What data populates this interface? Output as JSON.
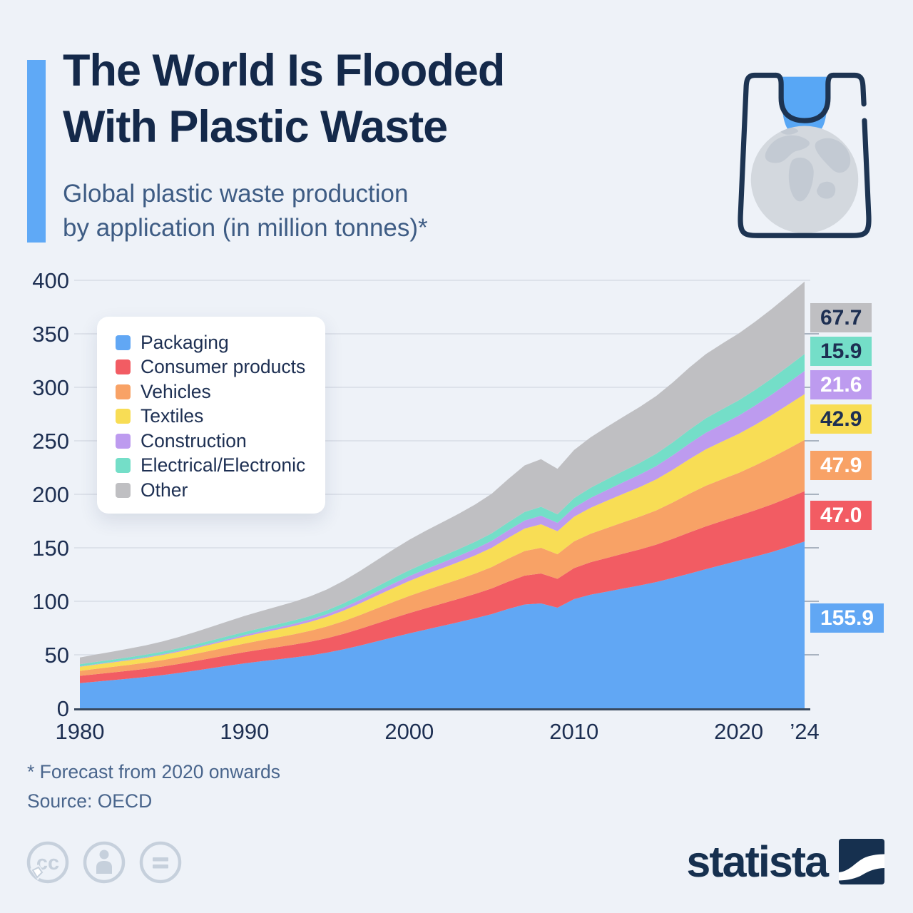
{
  "header": {
    "title_line1": "The World Is Flooded",
    "title_line2": "With Plastic Waste",
    "subtitle_line1": "Global plastic waste production",
    "subtitle_line2": "by application (in million tonnes)*",
    "accent_color": "#5fa9f6",
    "bag_icon": "plastic-bag-with-globe"
  },
  "chart_data": {
    "type": "area",
    "stacked": true,
    "title": "Global plastic waste production by application (in million tonnes)",
    "unit": "million tonnes",
    "x_min": 1980,
    "x_max": 2024,
    "ylim": [
      0,
      400
    ],
    "y_ticks": [
      0,
      50,
      100,
      150,
      200,
      250,
      300,
      350,
      400
    ],
    "x_ticks": [
      {
        "year": 1980,
        "label": "1980"
      },
      {
        "year": 1990,
        "label": "1990"
      },
      {
        "year": 2000,
        "label": "2000"
      },
      {
        "year": 2010,
        "label": "2010"
      },
      {
        "year": 2020,
        "label": "2020"
      },
      {
        "year": 2024,
        "label": "’24"
      }
    ],
    "grid": true,
    "legend_position": "top-left",
    "anchor_years": [
      1980,
      1985,
      1990,
      1995,
      2000,
      2005,
      2007,
      2008,
      2009,
      2010,
      2012,
      2015,
      2018,
      2020,
      2022,
      2024
    ],
    "series": [
      {
        "name": "Packaging",
        "color": "#61a7f4",
        "badge_text_color": "#ffffff",
        "end_label": "155.9",
        "values": [
          23.5,
          31,
          42,
          52,
          70,
          88,
          97,
          98,
          94,
          102,
          109,
          118,
          130,
          138,
          146,
          155.9
        ]
      },
      {
        "name": "Consumer products",
        "color": "#f25c63",
        "badge_text_color": "#ffffff",
        "end_label": "47.0",
        "values": [
          6.8,
          8,
          10.5,
          13.5,
          19,
          24,
          27,
          28,
          27,
          29,
          31.5,
          35,
          40,
          42,
          44.5,
          47.0
        ]
      },
      {
        "name": "Vehicles",
        "color": "#f8a266",
        "badge_text_color": "#ffffff",
        "end_label": "47.9",
        "values": [
          4.7,
          6,
          8,
          11,
          16,
          20,
          23,
          24,
          23,
          25,
          28,
          32,
          38,
          40,
          44,
          47.9
        ]
      },
      {
        "name": "Textiles",
        "color": "#f8dd55",
        "badge_text_color": "#1d2f52",
        "end_label": "42.9",
        "values": [
          3.8,
          4.8,
          6.5,
          9,
          14,
          18,
          21,
          22,
          21.5,
          23,
          25.5,
          29,
          34,
          36.5,
          39.5,
          42.9
        ]
      },
      {
        "name": "Construction",
        "color": "#bd9bef",
        "badge_text_color": "#ffffff",
        "end_label": "21.6",
        "values": [
          0.4,
          0.7,
          1.5,
          2.5,
          4.5,
          6.5,
          7.5,
          8,
          7.8,
          8.5,
          10,
          12.5,
          15.5,
          17,
          19.2,
          21.6
        ]
      },
      {
        "name": "Electrical/Electronic",
        "color": "#74dec8",
        "badge_text_color": "#1d2f52",
        "end_label": "15.9",
        "values": [
          2.0,
          2.4,
          2.8,
          3.6,
          5.5,
          7,
          8,
          8.3,
          8,
          8.8,
          10,
          11.5,
          13.5,
          14.3,
          15,
          15.9
        ]
      },
      {
        "name": "Other",
        "color": "#bfbfc2",
        "badge_text_color": "#1d2f52",
        "end_label": "67.7",
        "values": [
          6.3,
          9.5,
          15,
          19.5,
          28.5,
          37,
          43.5,
          44.5,
          42.5,
          45,
          49,
          54,
          60,
          62.5,
          65,
          67.7
        ]
      }
    ]
  },
  "footnote": {
    "forecast_note": "* Forecast from 2020 onwards",
    "source": "Source: OECD"
  },
  "footer": {
    "brand": "statista",
    "license_icons": [
      "cc-icon",
      "attribution-icon",
      "no-derivatives-icon"
    ]
  }
}
